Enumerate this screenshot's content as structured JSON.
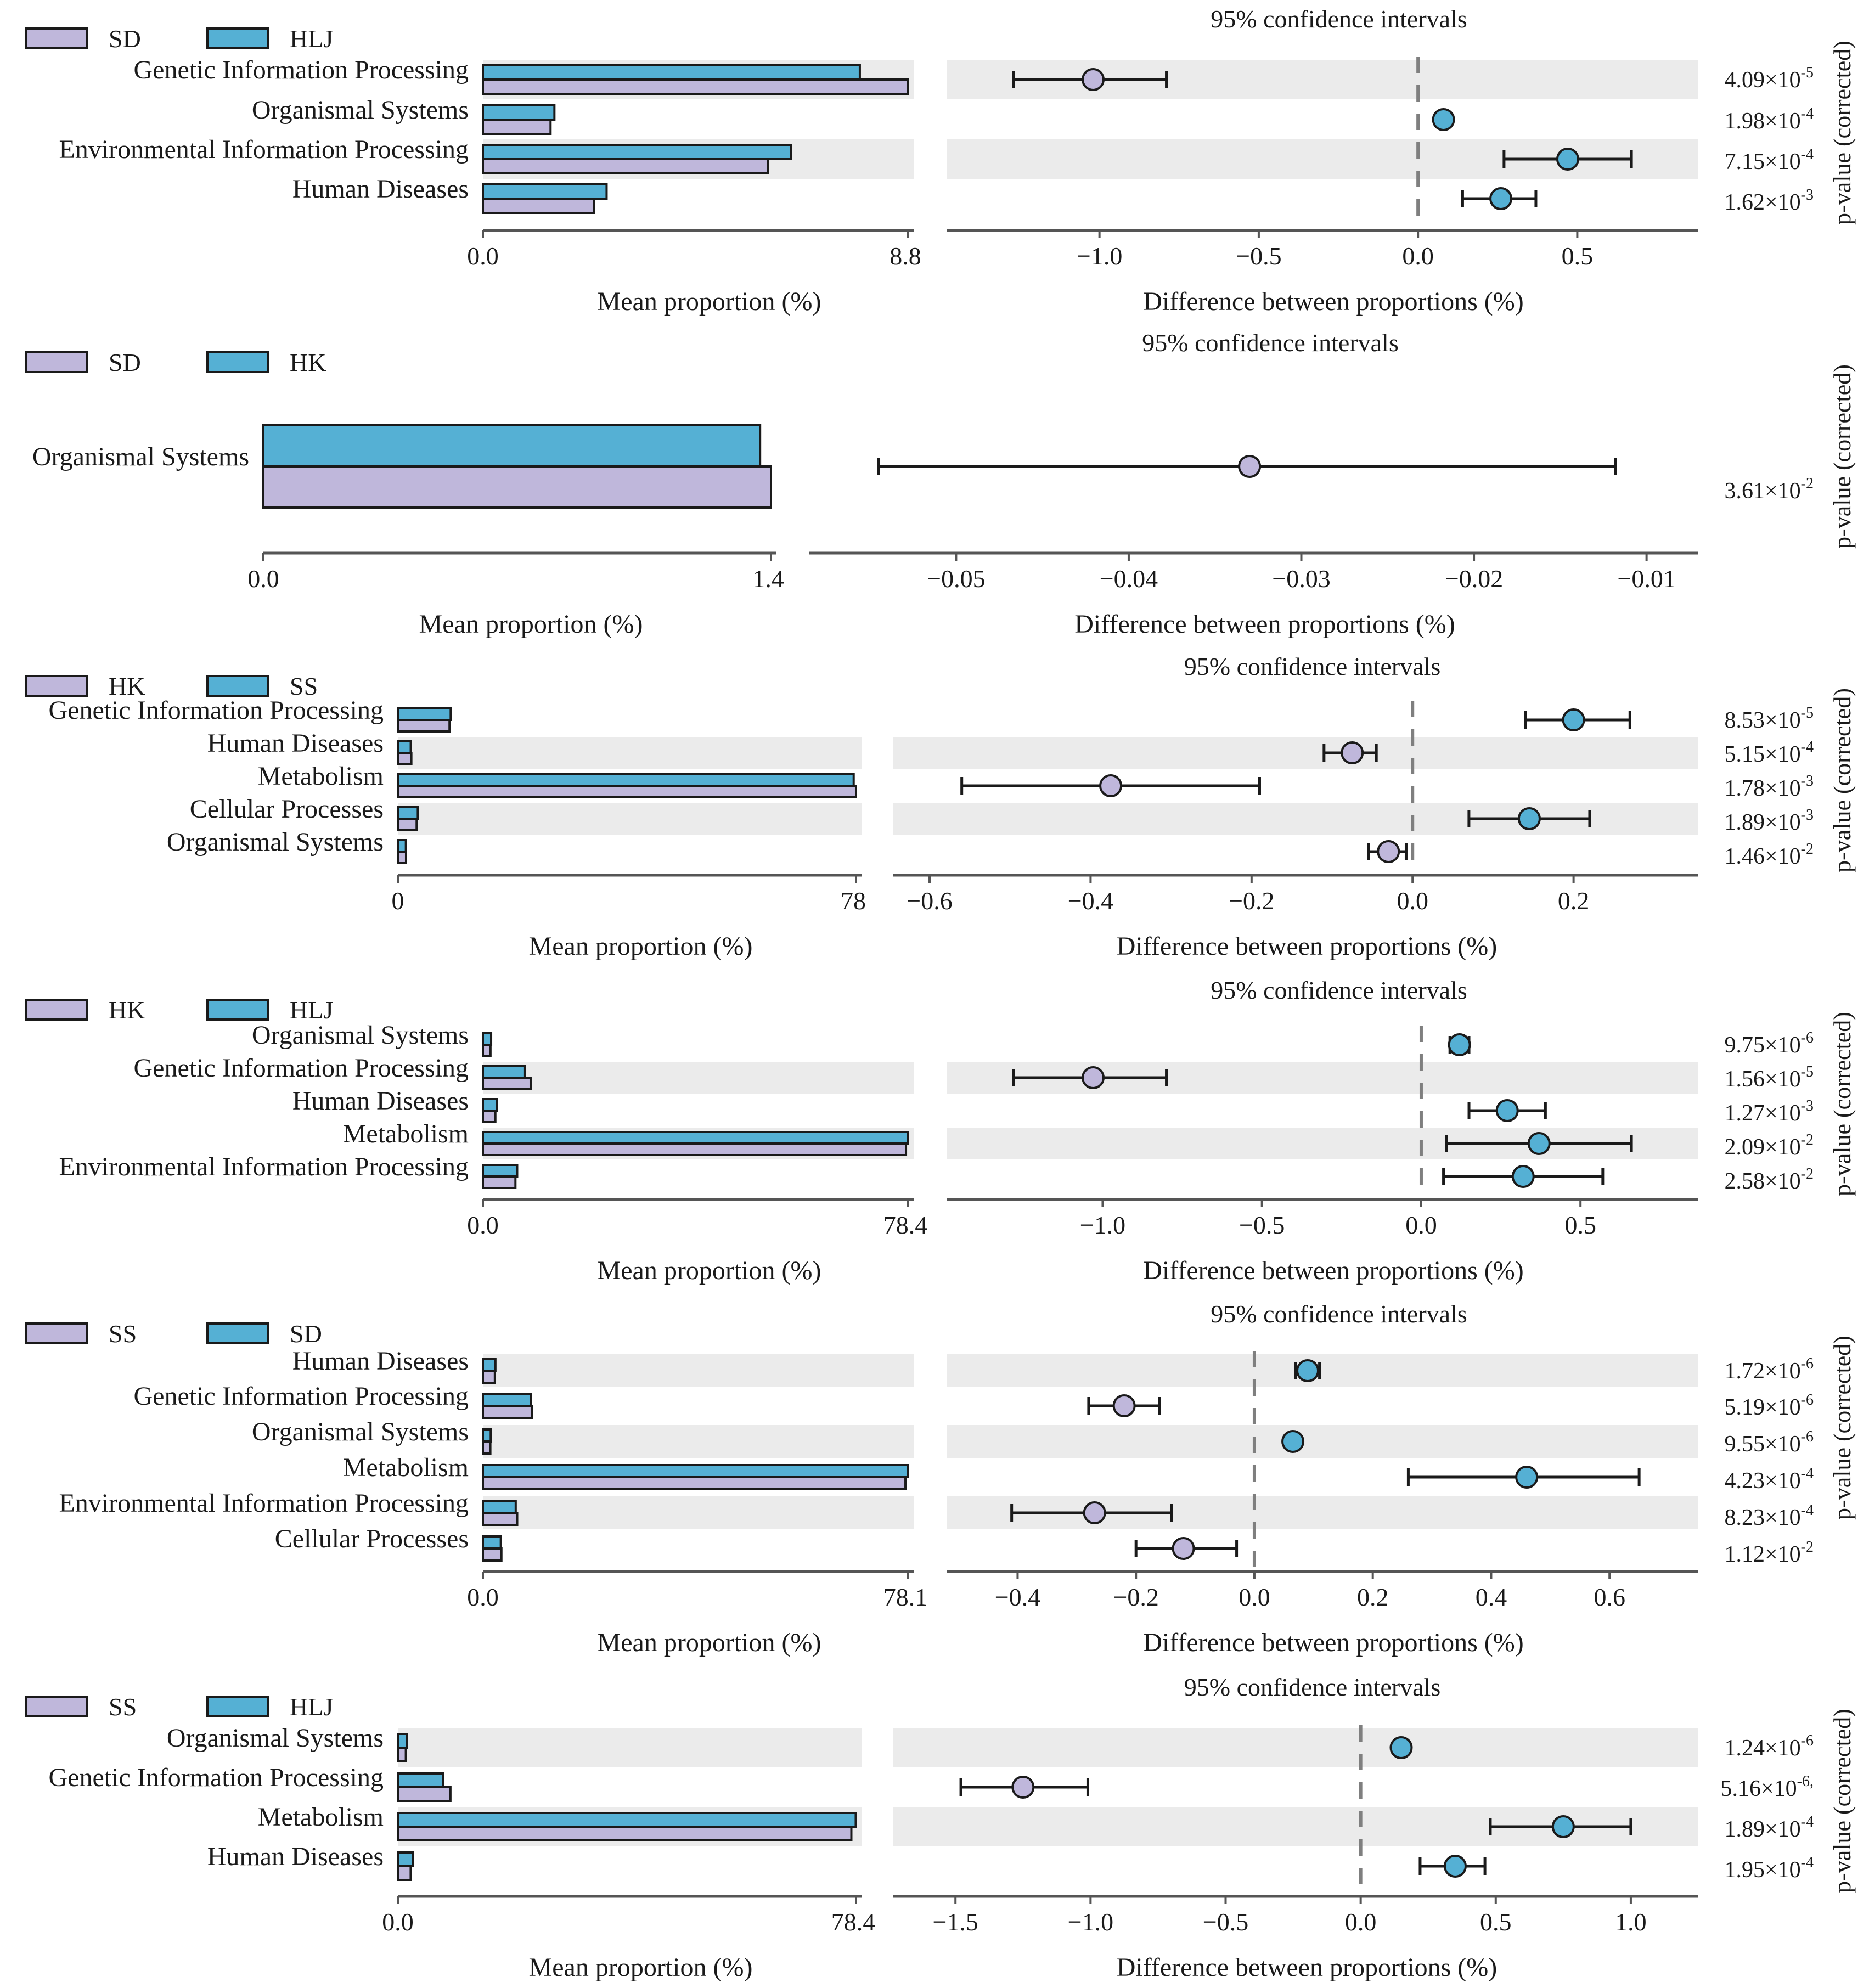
{
  "figure": {
    "ci_title": "95% confidence intervals",
    "pvalue_label": "p-value (corrected)",
    "mean_xlabel": "Mean proportion (%)",
    "diff_xlabel": "Difference between proportions (%)"
  },
  "colors": {
    "group1": "#bfb7db",
    "group2": "#55b0d4",
    "shade": "#ebebeb",
    "axis": "#555555",
    "dashed": "#7f7f7f"
  },
  "chart_data": [
    {
      "type": "bar",
      "groups": [
        "SD",
        "HLJ"
      ],
      "mean_max_label": "8.8",
      "mean_min_label": "0.0",
      "mean_xlim": [
        0,
        8.8
      ],
      "diff_ticks": [
        "-1.0",
        "-0.5",
        "0.0",
        "0.5"
      ],
      "diff_xlim": [
        -1.48,
        0.88
      ],
      "categories": [
        {
          "name": "Genetic Information Processing",
          "mean1": 8.8,
          "mean2": 7.8,
          "diff": -1.02,
          "ci": [
            -1.27,
            -0.79
          ],
          "pvalue": "4.09×10",
          "exp": "-5"
        },
        {
          "name": "Organismal Systems",
          "mean1": 1.4,
          "mean2": 1.48,
          "diff": 0.08,
          "ci": [
            0.06,
            0.1
          ],
          "pvalue": "1.98×10",
          "exp": "-4"
        },
        {
          "name": "Environmental Information Processing",
          "mean1": 5.9,
          "mean2": 6.38,
          "diff": 0.47,
          "ci": [
            0.27,
            0.67
          ],
          "pvalue": "7.15×10",
          "exp": "-4"
        },
        {
          "name": "Human Diseases",
          "mean1": 2.3,
          "mean2": 2.56,
          "diff": 0.26,
          "ci": [
            0.14,
            0.37
          ],
          "pvalue": "1.62×10",
          "exp": "-3"
        }
      ]
    },
    {
      "type": "bar",
      "groups": [
        "SD",
        "HK"
      ],
      "mean_max_label": "1.4",
      "mean_min_label": "0.0",
      "mean_xlim": [
        0,
        1.4
      ],
      "diff_ticks": [
        "-0.05",
        "-0.04",
        "-0.03",
        "-0.02",
        "-0.01"
      ],
      "diff_xlim": [
        -0.0585,
        -0.007
      ],
      "categories": [
        {
          "name": "Organismal Systems",
          "mean1": 1.4,
          "mean2": 1.37,
          "diff": -0.033,
          "ci": [
            -0.0545,
            -0.0118
          ],
          "pvalue": "3.61×10",
          "exp": "-2"
        }
      ]
    },
    {
      "type": "bar",
      "groups": [
        "HK",
        "SS"
      ],
      "mean_max_label": "78",
      "mean_min_label": "0",
      "mean_xlim": [
        0,
        78
      ],
      "diff_ticks": [
        "-0.6",
        "-0.4",
        "-0.2",
        "0.0",
        "0.2"
      ],
      "diff_xlim": [
        -0.645,
        0.355
      ],
      "categories": [
        {
          "name": "Genetic Information Processing",
          "mean1": 8.8,
          "mean2": 9.0,
          "diff": 0.2,
          "ci": [
            0.14,
            0.27
          ],
          "pvalue": "8.53×10",
          "exp": "-5"
        },
        {
          "name": "Human Diseases",
          "mean1": 2.3,
          "mean2": 2.2,
          "diff": -0.075,
          "ci": [
            -0.11,
            -0.045
          ],
          "pvalue": "5.15×10",
          "exp": "-4"
        },
        {
          "name": "Metabolism",
          "mean1": 78.0,
          "mean2": 77.6,
          "diff": -0.375,
          "ci": [
            -0.56,
            -0.19
          ],
          "pvalue": "1.78×10",
          "exp": "-3"
        },
        {
          "name": "Cellular Processes",
          "mean1": 3.2,
          "mean2": 3.4,
          "diff": 0.145,
          "ci": [
            0.07,
            0.22
          ],
          "pvalue": "1.89×10",
          "exp": "-3"
        },
        {
          "name": "Organismal Systems",
          "mean1": 1.4,
          "mean2": 1.37,
          "diff": -0.03,
          "ci": [
            -0.055,
            -0.008
          ],
          "pvalue": "1.46×10",
          "exp": "-2"
        }
      ]
    },
    {
      "type": "bar",
      "groups": [
        "HK",
        "HLJ"
      ],
      "mean_max_label": "78.4",
      "mean_min_label": "0.0",
      "mean_xlim": [
        0,
        78.4
      ],
      "diff_ticks": [
        "-1.0",
        "-0.5",
        "0.0",
        "0.5"
      ],
      "diff_xlim": [
        -1.49,
        0.87
      ],
      "categories": [
        {
          "name": "Organismal Systems",
          "mean1": 1.4,
          "mean2": 1.52,
          "diff": 0.12,
          "ci": [
            0.09,
            0.15
          ],
          "pvalue": "9.75×10",
          "exp": "-6"
        },
        {
          "name": "Genetic Information Processing",
          "mean1": 8.8,
          "mean2": 7.78,
          "diff": -1.03,
          "ci": [
            -1.28,
            -0.8
          ],
          "pvalue": "1.56×10",
          "exp": "-5"
        },
        {
          "name": "Human Diseases",
          "mean1": 2.3,
          "mean2": 2.57,
          "diff": 0.27,
          "ci": [
            0.15,
            0.39
          ],
          "pvalue": "1.27×10",
          "exp": "-3"
        },
        {
          "name": "Metabolism",
          "mean1": 78.0,
          "mean2": 78.37,
          "diff": 0.37,
          "ci": [
            0.08,
            0.66
          ],
          "pvalue": "2.09×10",
          "exp": "-2"
        },
        {
          "name": "Environmental Information Processing",
          "mean1": 6.0,
          "mean2": 6.32,
          "diff": 0.32,
          "ci": [
            0.07,
            0.57
          ],
          "pvalue": "2.58×10",
          "exp": "-2"
        }
      ]
    },
    {
      "type": "bar",
      "groups": [
        "SS",
        "SD"
      ],
      "mean_max_label": "78.1",
      "mean_min_label": "0.0",
      "mean_xlim": [
        0,
        78.1
      ],
      "diff_ticks": [
        "-0.4",
        "-0.2",
        "0.0",
        "0.2",
        "0.4",
        "0.6"
      ],
      "diff_xlim": [
        -0.52,
        0.75
      ],
      "categories": [
        {
          "name": "Human Diseases",
          "mean1": 2.2,
          "mean2": 2.3,
          "diff": 0.09,
          "ci": [
            0.07,
            0.11
          ],
          "pvalue": "1.72×10",
          "exp": "-6"
        },
        {
          "name": "Genetic Information Processing",
          "mean1": 9.0,
          "mean2": 8.8,
          "diff": -0.22,
          "ci": [
            -0.28,
            -0.16
          ],
          "pvalue": "5.19×10",
          "exp": "-6"
        },
        {
          "name": "Organismal Systems",
          "mean1": 1.37,
          "mean2": 1.44,
          "diff": 0.065,
          "ci": [
            0.055,
            0.075
          ],
          "pvalue": "9.55×10",
          "exp": "-6"
        },
        {
          "name": "Metabolism",
          "mean1": 77.6,
          "mean2": 78.06,
          "diff": 0.46,
          "ci": [
            0.26,
            0.65
          ],
          "pvalue": "4.23×10",
          "exp": "-4"
        },
        {
          "name": "Environmental Information Processing",
          "mean1": 6.3,
          "mean2": 6.03,
          "diff": -0.27,
          "ci": [
            -0.41,
            -0.14
          ],
          "pvalue": "8.23×10",
          "exp": "-4"
        },
        {
          "name": "Cellular Processes",
          "mean1": 3.4,
          "mean2": 3.29,
          "diff": -0.12,
          "ci": [
            -0.2,
            -0.03
          ],
          "pvalue": "1.12×10",
          "exp": "-2"
        }
      ]
    },
    {
      "type": "bar",
      "groups": [
        "SS",
        "HLJ"
      ],
      "mean_max_label": "78.4",
      "mean_min_label": "0.0",
      "mean_xlim": [
        0,
        78.4
      ],
      "diff_ticks": [
        "-1.5",
        "-1.0",
        "-0.5",
        "0.0",
        "0.5",
        "1.0"
      ],
      "diff_xlim": [
        -1.73,
        1.25
      ],
      "categories": [
        {
          "name": "Organismal Systems",
          "mean1": 1.37,
          "mean2": 1.52,
          "diff": 0.15,
          "ci": [
            0.13,
            0.17
          ],
          "pvalue": "1.24×10",
          "exp": "-6"
        },
        {
          "name": "Genetic Information Processing",
          "mean1": 9.0,
          "mean2": 7.75,
          "diff": -1.25,
          "ci": [
            -1.48,
            -1.01
          ],
          "pvalue": "5.16×10",
          "exp": "-6,"
        },
        {
          "name": "Metabolism",
          "mean1": 77.6,
          "mean2": 78.35,
          "diff": 0.75,
          "ci": [
            0.48,
            1.0
          ],
          "pvalue": "1.89×10",
          "exp": "-4"
        },
        {
          "name": "Human Diseases",
          "mean1": 2.2,
          "mean2": 2.55,
          "diff": 0.35,
          "ci": [
            0.22,
            0.46
          ],
          "pvalue": "1.95×10",
          "exp": "-4"
        }
      ]
    }
  ]
}
